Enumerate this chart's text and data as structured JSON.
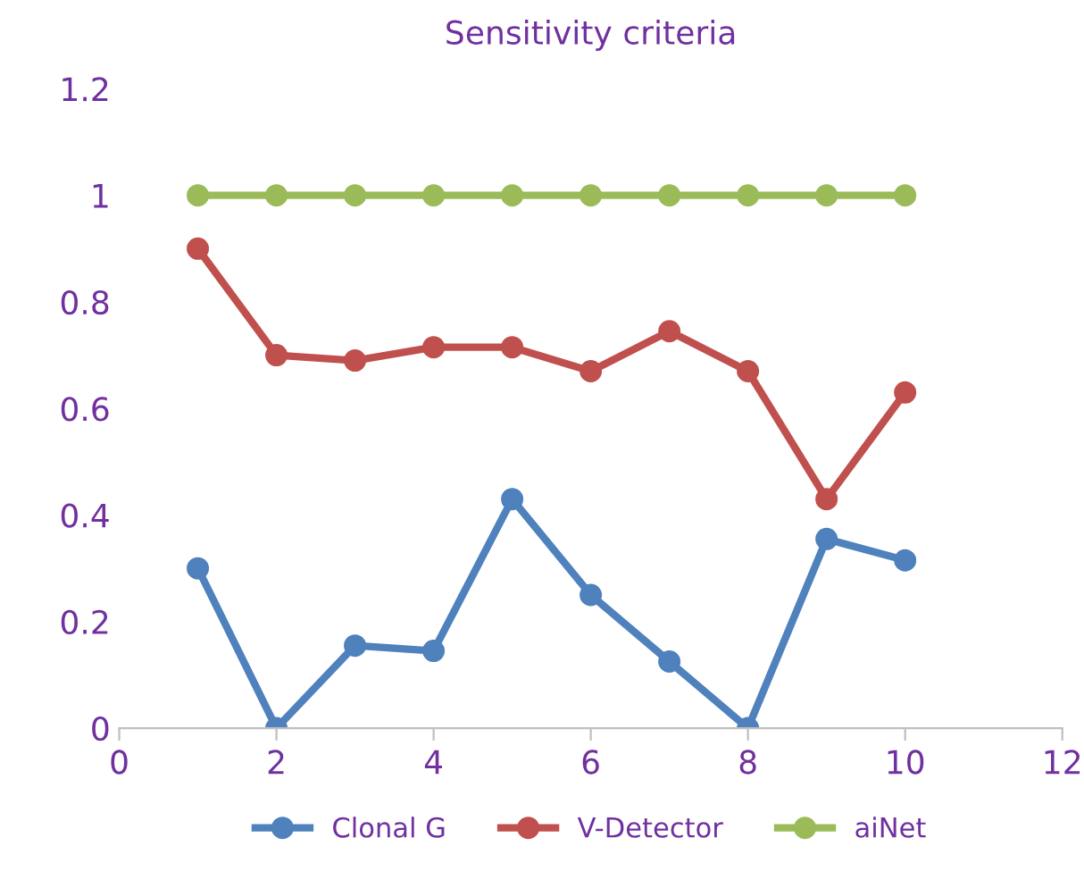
{
  "chart_data": {
    "type": "line",
    "title": "Sensitivity criteria",
    "x": [
      1,
      2,
      3,
      4,
      5,
      6,
      7,
      8,
      9,
      10
    ],
    "series": [
      {
        "name": "Clonal G",
        "color": "#4f81bd",
        "values": [
          0.3,
          0,
          0.155,
          0.145,
          0.43,
          0.25,
          0.125,
          0,
          0.355,
          0.315
        ]
      },
      {
        "name": "V-Detector",
        "color": "#c0504d",
        "values": [
          0.9,
          0.7,
          0.69,
          0.715,
          0.715,
          0.67,
          0.745,
          0.67,
          0.43,
          0.63
        ]
      },
      {
        "name": "aiNet",
        "color": "#9bbb59",
        "values": [
          1,
          1,
          1,
          1,
          1,
          1,
          1,
          1,
          1,
          1
        ]
      }
    ],
    "xlim": [
      0,
      12
    ],
    "xticks": [
      0,
      2,
      4,
      6,
      8,
      10,
      12
    ],
    "ylim": [
      0,
      1.2
    ],
    "yticks": [
      0,
      0.2,
      0.4,
      0.6,
      0.8,
      1,
      1.2
    ],
    "grid": false,
    "legend": "bottom",
    "marker": "circle",
    "line_style": "solid"
  }
}
